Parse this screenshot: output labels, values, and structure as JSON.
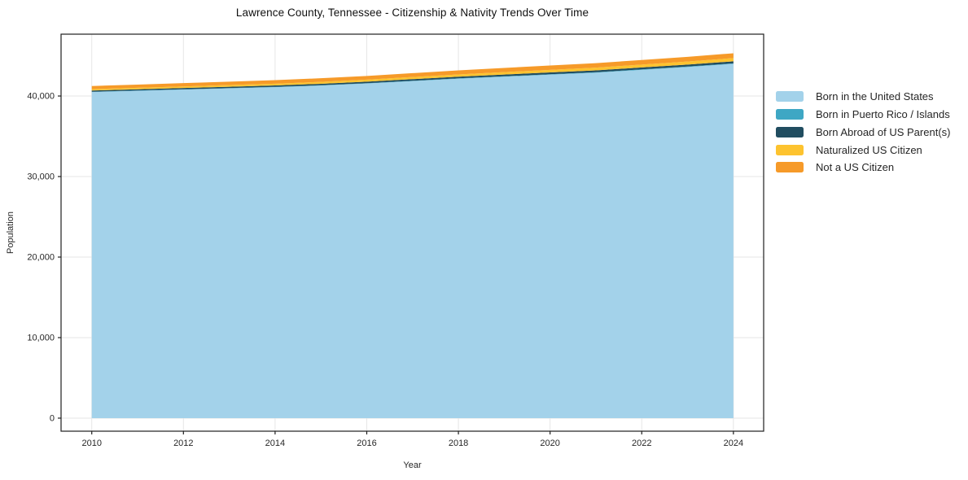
{
  "chart_data": {
    "type": "area",
    "stacked": true,
    "title": "Lawrence County, Tennessee - Citizenship & Nativity Trends Over Time",
    "xlabel": "Year",
    "ylabel": "Population",
    "grid": true,
    "legend_position": "right-outside",
    "xlim": [
      2009.33,
      2024.66
    ],
    "ylim": [
      -1620,
      47680
    ],
    "x": [
      2010,
      2011,
      2012,
      2013,
      2014,
      2015,
      2016,
      2017,
      2018,
      2019,
      2020,
      2021,
      2022,
      2023,
      2024
    ],
    "series": [
      {
        "name": "Born in the United States",
        "color": "#a3d2ea",
        "values": [
          40500,
          40650,
          40800,
          40950,
          41100,
          41300,
          41550,
          41850,
          42150,
          42400,
          42650,
          42900,
          43250,
          43600,
          44000
        ]
      },
      {
        "name": "Born in Puerto Rico / Islands",
        "color": "#3ea7c4",
        "values": [
          30,
          30,
          35,
          35,
          40,
          40,
          40,
          45,
          45,
          50,
          50,
          55,
          55,
          60,
          60
        ]
      },
      {
        "name": "Born Abroad of US Parent(s)",
        "color": "#214d60",
        "values": [
          150,
          155,
          160,
          165,
          170,
          180,
          190,
          200,
          210,
          220,
          230,
          235,
          240,
          245,
          250
        ]
      },
      {
        "name": "Naturalized US Citizen",
        "color": "#fdc32f",
        "values": [
          180,
          190,
          200,
          210,
          225,
          240,
          250,
          265,
          280,
          300,
          320,
          340,
          360,
          380,
          400
        ]
      },
      {
        "name": "Not a US Citizen",
        "color": "#f69a29",
        "values": [
          380,
          395,
          410,
          425,
          440,
          450,
          460,
          480,
          500,
          520,
          540,
          555,
          570,
          585,
          600
        ]
      }
    ],
    "xticks": [
      {
        "value": 2010,
        "label": "2010"
      },
      {
        "value": 2012,
        "label": "2012"
      },
      {
        "value": 2014,
        "label": "2014"
      },
      {
        "value": 2016,
        "label": "2016"
      },
      {
        "value": 2018,
        "label": "2018"
      },
      {
        "value": 2020,
        "label": "2020"
      },
      {
        "value": 2022,
        "label": "2022"
      },
      {
        "value": 2024,
        "label": "2024"
      }
    ],
    "yticks": [
      {
        "value": 0,
        "label": "0"
      },
      {
        "value": 10000,
        "label": "10,000"
      },
      {
        "value": 20000,
        "label": "20,000"
      },
      {
        "value": 30000,
        "label": "30,000"
      },
      {
        "value": 40000,
        "label": "40,000"
      }
    ]
  },
  "colors": {
    "grid": "#e6e6e6",
    "spine": "#1f1f1f",
    "tick": "#1f1f1f",
    "text": "#262626",
    "background": "#ffffff"
  }
}
